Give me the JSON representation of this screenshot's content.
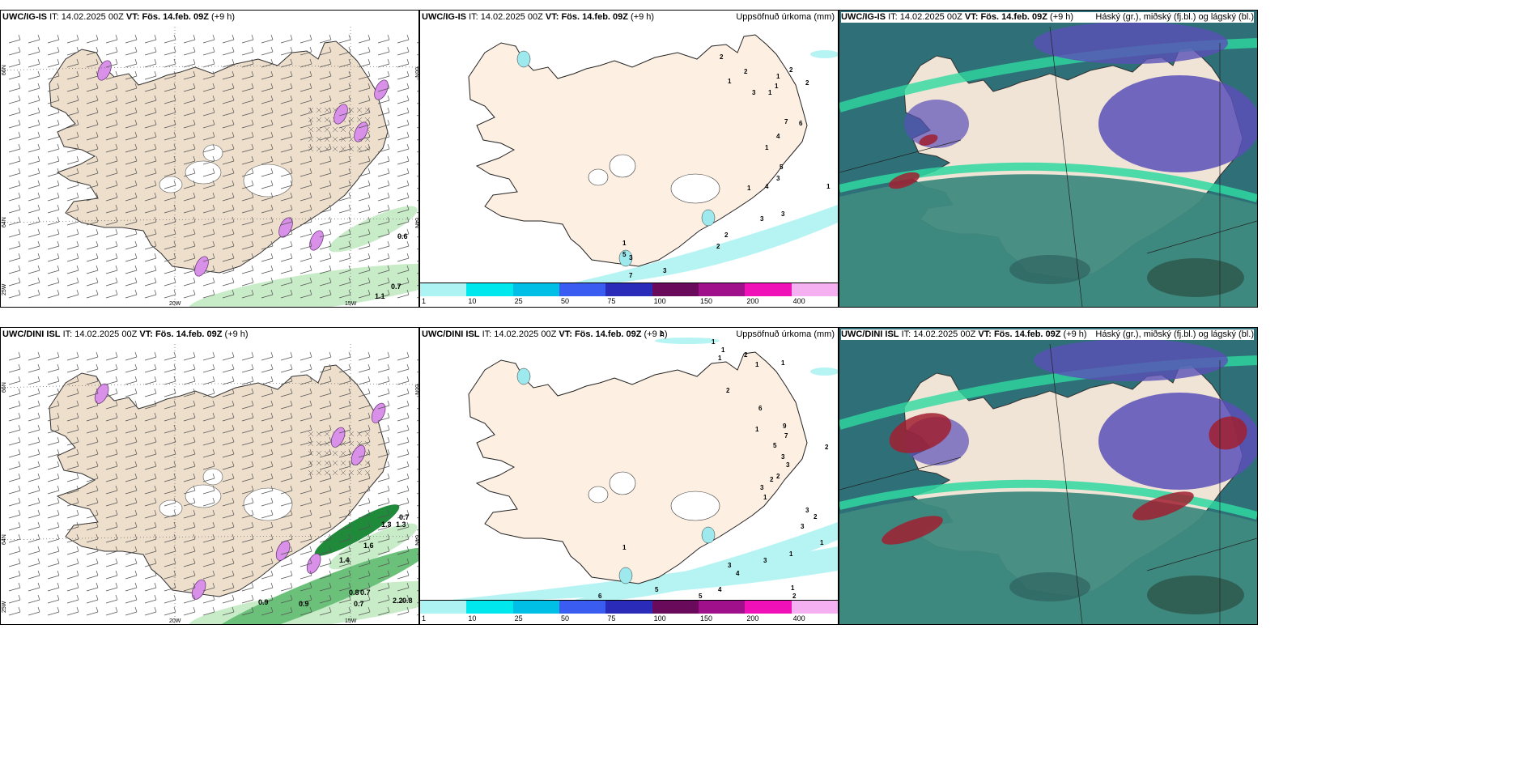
{
  "panels": [
    {
      "model": "UWC/IG-IS",
      "it_label": "IT:",
      "it": "14.02.2025 00Z",
      "vt_label": "VT:",
      "vt": "Fös. 14.feb. 09Z",
      "lead": "(+9 h)",
      "right_title": "",
      "type": "wind",
      "lat_labels": [
        "66N",
        "64N",
        "25W"
      ],
      "lon_labels": [
        "20W",
        "15W"
      ],
      "right_lat_labels": [
        "66N",
        "64N"
      ],
      "values": [
        "0.6",
        "0.7",
        "1.1"
      ]
    },
    {
      "model": "UWC/IG-IS",
      "it_label": "IT:",
      "it": "14.02.2025 00Z",
      "vt_label": "VT:",
      "vt": "Fös. 14.feb. 09Z",
      "lead": "(+9 h)",
      "right_title": "Uppsöfnuð úrkoma (mm)",
      "type": "precip",
      "values": [
        "2",
        "1",
        "2",
        "1",
        "1",
        "2",
        "1",
        "3",
        "2",
        "7",
        "6",
        "1",
        "4",
        "5",
        "3",
        "4",
        "1",
        "1",
        "3",
        "3",
        "2",
        "2",
        "3",
        "1",
        "5",
        "3",
        "7"
      ]
    },
    {
      "model": "UWC/IG-IS",
      "it_label": "IT:",
      "it": "14.02.2025 00Z",
      "vt_label": "VT:",
      "vt": "Fös. 14.feb. 09Z",
      "lead": "(+9 h)",
      "right_title": "Háský (gr.), miðský (fj.bl.) og lágský (bl.)",
      "type": "cloud"
    },
    {
      "model": "UWC/DINI ISL",
      "it_label": "IT:",
      "it": "14.02.2025 00Z",
      "vt_label": "VT:",
      "vt": "Fös. 14.feb. 09Z",
      "lead": "(+9 h)",
      "right_title": "",
      "type": "wind",
      "lat_labels": [
        "66N",
        "64N",
        "25W"
      ],
      "lon_labels": [
        "20W",
        "15W"
      ],
      "right_lat_labels": [
        "66N",
        "64N"
      ],
      "values": [
        "0.7",
        "1.3",
        "1.3",
        "1.6",
        "1.4",
        "0.9",
        "0.9",
        "0.8",
        "0.7",
        "0.7",
        "2.2",
        "0.8"
      ]
    },
    {
      "model": "UWC/DINI ISL",
      "it_label": "IT:",
      "it": "14.02.2025 00Z",
      "vt_label": "VT:",
      "vt": "Fös. 14.feb. 09Z",
      "lead": "(+9 h)",
      "right_title": "Uppsöfnuð úrkoma (mm)",
      "type": "precip",
      "values": [
        "2",
        "1",
        "1",
        "1",
        "2",
        "1",
        "1",
        "2",
        "6",
        "1",
        "9",
        "7",
        "5",
        "3",
        "3",
        "2",
        "2",
        "3",
        "1",
        "2",
        "3",
        "2",
        "1",
        "3",
        "1",
        "3",
        "4",
        "3",
        "4",
        "5",
        "5",
        "6",
        "1",
        "2",
        "1"
      ]
    },
    {
      "model": "UWC/DINI ISL",
      "it_label": "IT:",
      "it": "14.02.2025 00Z",
      "vt_label": "VT:",
      "vt": "Fös. 14.feb. 09Z",
      "lead": "(+9 h)",
      "right_title": "Háský (gr.), miðský (fj.bl.) og lágský (bl.)",
      "type": "cloud"
    }
  ],
  "legend": {
    "labels": [
      "1",
      "10",
      "25",
      "50",
      "75",
      "100",
      "150",
      "200",
      "400"
    ],
    "colors": [
      "#aef3f3",
      "#00e8ee",
      "#00bfe6",
      "#3a5cf0",
      "#2a2bb8",
      "#6a0a5a",
      "#a0108a",
      "#f010b8",
      "#f4b0f0"
    ]
  },
  "colors": {
    "land": "#f0e4d6",
    "land_precip": "#fdf0e2",
    "wind_land": "#eedfcc",
    "precip_light": "#b6f4f4",
    "green_light": "#c8ecc8",
    "green_dark": "#1e8a3a",
    "pink": "#d890e8",
    "cloud_teal": "#3a8a88",
    "cloud_green": "#2fd8a0",
    "cloud_blue": "#5a50b8",
    "cloud_red": "#a02030"
  }
}
